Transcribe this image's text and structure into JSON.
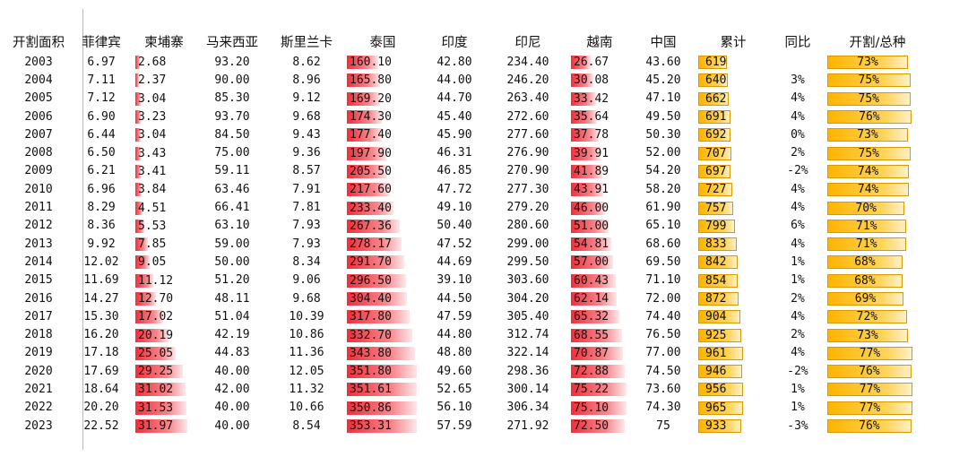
{
  "headers": [
    "开割面积",
    "菲律宾",
    "柬埔寨",
    "马来西亚",
    "斯里兰卡",
    "泰国",
    "印度",
    "印尼",
    "越南",
    "中国",
    "累计",
    "同比",
    "开割/总种"
  ],
  "rows": [
    {
      "year": "2003",
      "ph": "6.97",
      "kh": "2.68",
      "my": "93.20",
      "lk": "8.62",
      "th": "160.10",
      "in": "42.80",
      "id": "234.40",
      "vn": "26.67",
      "cn": "43.60",
      "total": "619",
      "yoy": "",
      "ratio": "73%",
      "kh_v": 2.68,
      "th_v": 160.1,
      "vn_v": 26.67,
      "total_v": 619,
      "ratio_v": 73
    },
    {
      "year": "2004",
      "ph": "7.11",
      "kh": "2.37",
      "my": "90.00",
      "lk": "8.96",
      "th": "165.80",
      "in": "44.00",
      "id": "246.20",
      "vn": "30.08",
      "cn": "45.20",
      "total": "640",
      "yoy": "3%",
      "ratio": "75%",
      "kh_v": 2.37,
      "th_v": 165.8,
      "vn_v": 30.08,
      "total_v": 640,
      "ratio_v": 75
    },
    {
      "year": "2005",
      "ph": "7.12",
      "kh": "3.04",
      "my": "85.30",
      "lk": "9.12",
      "th": "169.20",
      "in": "44.70",
      "id": "263.40",
      "vn": "33.42",
      "cn": "47.10",
      "total": "662",
      "yoy": "4%",
      "ratio": "75%",
      "kh_v": 3.04,
      "th_v": 169.2,
      "vn_v": 33.42,
      "total_v": 662,
      "ratio_v": 75
    },
    {
      "year": "2006",
      "ph": "6.90",
      "kh": "3.23",
      "my": "93.70",
      "lk": "9.68",
      "th": "174.30",
      "in": "45.40",
      "id": "272.60",
      "vn": "35.64",
      "cn": "49.50",
      "total": "691",
      "yoy": "4%",
      "ratio": "76%",
      "kh_v": 3.23,
      "th_v": 174.3,
      "vn_v": 35.64,
      "total_v": 691,
      "ratio_v": 76
    },
    {
      "year": "2007",
      "ph": "6.44",
      "kh": "3.04",
      "my": "84.50",
      "lk": "9.43",
      "th": "177.40",
      "in": "45.90",
      "id": "277.60",
      "vn": "37.78",
      "cn": "50.30",
      "total": "692",
      "yoy": "0%",
      "ratio": "73%",
      "kh_v": 3.04,
      "th_v": 177.4,
      "vn_v": 37.78,
      "total_v": 692,
      "ratio_v": 73
    },
    {
      "year": "2008",
      "ph": "6.50",
      "kh": "3.43",
      "my": "75.00",
      "lk": "9.36",
      "th": "197.90",
      "in": "46.31",
      "id": "276.90",
      "vn": "39.91",
      "cn": "52.00",
      "total": "707",
      "yoy": "2%",
      "ratio": "75%",
      "kh_v": 3.43,
      "th_v": 197.9,
      "vn_v": 39.91,
      "total_v": 707,
      "ratio_v": 75
    },
    {
      "year": "2009",
      "ph": "6.21",
      "kh": "3.41",
      "my": "59.11",
      "lk": "8.57",
      "th": "205.50",
      "in": "46.85",
      "id": "270.90",
      "vn": "41.89",
      "cn": "54.20",
      "total": "697",
      "yoy": "-2%",
      "ratio": "74%",
      "kh_v": 3.41,
      "th_v": 205.5,
      "vn_v": 41.89,
      "total_v": 697,
      "ratio_v": 74
    },
    {
      "year": "2010",
      "ph": "6.96",
      "kh": "3.84",
      "my": "63.46",
      "lk": "7.91",
      "th": "217.60",
      "in": "47.72",
      "id": "277.30",
      "vn": "43.91",
      "cn": "58.20",
      "total": "727",
      "yoy": "4%",
      "ratio": "74%",
      "kh_v": 3.84,
      "th_v": 217.6,
      "vn_v": 43.91,
      "total_v": 727,
      "ratio_v": 74
    },
    {
      "year": "2011",
      "ph": "8.29",
      "kh": "4.51",
      "my": "66.41",
      "lk": "7.81",
      "th": "233.40",
      "in": "49.10",
      "id": "279.20",
      "vn": "46.00",
      "cn": "61.90",
      "total": "757",
      "yoy": "4%",
      "ratio": "70%",
      "kh_v": 4.51,
      "th_v": 233.4,
      "vn_v": 46.0,
      "total_v": 757,
      "ratio_v": 70
    },
    {
      "year": "2012",
      "ph": "8.36",
      "kh": "5.53",
      "my": "63.10",
      "lk": "7.93",
      "th": "267.36",
      "in": "50.40",
      "id": "280.60",
      "vn": "51.00",
      "cn": "65.10",
      "total": "799",
      "yoy": "6%",
      "ratio": "71%",
      "kh_v": 5.53,
      "th_v": 267.36,
      "vn_v": 51.0,
      "total_v": 799,
      "ratio_v": 71
    },
    {
      "year": "2013",
      "ph": "9.92",
      "kh": "7.85",
      "my": "59.00",
      "lk": "7.93",
      "th": "278.17",
      "in": "47.52",
      "id": "299.00",
      "vn": "54.81",
      "cn": "68.60",
      "total": "833",
      "yoy": "4%",
      "ratio": "71%",
      "kh_v": 7.85,
      "th_v": 278.17,
      "vn_v": 54.81,
      "total_v": 833,
      "ratio_v": 71
    },
    {
      "year": "2014",
      "ph": "12.02",
      "kh": "9.05",
      "my": "50.00",
      "lk": "8.34",
      "th": "291.70",
      "in": "44.69",
      "id": "299.50",
      "vn": "57.00",
      "cn": "69.50",
      "total": "842",
      "yoy": "1%",
      "ratio": "68%",
      "kh_v": 9.05,
      "th_v": 291.7,
      "vn_v": 57.0,
      "total_v": 842,
      "ratio_v": 68
    },
    {
      "year": "2015",
      "ph": "11.69",
      "kh": "11.12",
      "my": "51.20",
      "lk": "9.06",
      "th": "296.50",
      "in": "39.10",
      "id": "303.60",
      "vn": "60.43",
      "cn": "71.10",
      "total": "854",
      "yoy": "1%",
      "ratio": "68%",
      "kh_v": 11.12,
      "th_v": 296.5,
      "vn_v": 60.43,
      "total_v": 854,
      "ratio_v": 68
    },
    {
      "year": "2016",
      "ph": "14.27",
      "kh": "12.70",
      "my": "48.11",
      "lk": "9.68",
      "th": "304.40",
      "in": "44.50",
      "id": "304.20",
      "vn": "62.14",
      "cn": "72.00",
      "total": "872",
      "yoy": "2%",
      "ratio": "69%",
      "kh_v": 12.7,
      "th_v": 304.4,
      "vn_v": 62.14,
      "total_v": 872,
      "ratio_v": 69
    },
    {
      "year": "2017",
      "ph": "15.30",
      "kh": "17.02",
      "my": "51.04",
      "lk": "10.39",
      "th": "317.80",
      "in": "47.59",
      "id": "305.40",
      "vn": "65.32",
      "cn": "74.40",
      "total": "904",
      "yoy": "4%",
      "ratio": "72%",
      "kh_v": 17.02,
      "th_v": 317.8,
      "vn_v": 65.32,
      "total_v": 904,
      "ratio_v": 72
    },
    {
      "year": "2018",
      "ph": "16.20",
      "kh": "20.19",
      "my": "42.19",
      "lk": "10.86",
      "th": "332.70",
      "in": "44.80",
      "id": "312.74",
      "vn": "68.55",
      "cn": "76.50",
      "total": "925",
      "yoy": "2%",
      "ratio": "73%",
      "kh_v": 20.19,
      "th_v": 332.7,
      "vn_v": 68.55,
      "total_v": 925,
      "ratio_v": 73
    },
    {
      "year": "2019",
      "ph": "17.18",
      "kh": "25.05",
      "my": "44.83",
      "lk": "11.36",
      "th": "343.80",
      "in": "48.80",
      "id": "322.14",
      "vn": "70.87",
      "cn": "77.00",
      "total": "961",
      "yoy": "4%",
      "ratio": "77%",
      "kh_v": 25.05,
      "th_v": 343.8,
      "vn_v": 70.87,
      "total_v": 961,
      "ratio_v": 77
    },
    {
      "year": "2020",
      "ph": "17.69",
      "kh": "29.25",
      "my": "40.00",
      "lk": "12.05",
      "th": "351.80",
      "in": "49.60",
      "id": "298.36",
      "vn": "72.88",
      "cn": "74.50",
      "total": "946",
      "yoy": "-2%",
      "ratio": "76%",
      "kh_v": 29.25,
      "th_v": 351.8,
      "vn_v": 72.88,
      "total_v": 946,
      "ratio_v": 76
    },
    {
      "year": "2021",
      "ph": "18.64",
      "kh": "31.02",
      "my": "42.00",
      "lk": "11.32",
      "th": "351.61",
      "in": "52.65",
      "id": "300.14",
      "vn": "75.22",
      "cn": "73.60",
      "total": "956",
      "yoy": "1%",
      "ratio": "77%",
      "kh_v": 31.02,
      "th_v": 351.61,
      "vn_v": 75.22,
      "total_v": 956,
      "ratio_v": 77
    },
    {
      "year": "2022",
      "ph": "20.20",
      "kh": "31.53",
      "my": "40.00",
      "lk": "10.66",
      "th": "350.86",
      "in": "56.10",
      "id": "306.34",
      "vn": "75.10",
      "cn": "74.30",
      "total": "965",
      "yoy": "1%",
      "ratio": "77%",
      "kh_v": 31.53,
      "th_v": 350.86,
      "vn_v": 75.1,
      "total_v": 965,
      "ratio_v": 77
    },
    {
      "year": "2023",
      "ph": "22.52",
      "kh": "31.97",
      "my": "40.00",
      "lk": "8.54",
      "th": "353.31",
      "in": "57.59",
      "id": "271.92",
      "vn": "72.50",
      "cn": "75",
      "total": "933",
      "yoy": "-3%",
      "ratio": "76%",
      "kh_v": 31.97,
      "th_v": 353.31,
      "vn_v": 72.5,
      "total_v": 933,
      "ratio_v": 76
    }
  ],
  "bar_scales": {
    "kh": {
      "min": 0,
      "max": 31.97
    },
    "th": {
      "min": 0,
      "max": 353.31
    },
    "vn": {
      "min": 0,
      "max": 75.22
    },
    "total": {
      "min": 0,
      "max": 965
    },
    "ratio": {
      "min": 0,
      "max": 77
    }
  },
  "colors": {
    "red_bar": "#ef2f3a",
    "gold_bar": "#ffc000",
    "divider": "#b8b8b8"
  }
}
